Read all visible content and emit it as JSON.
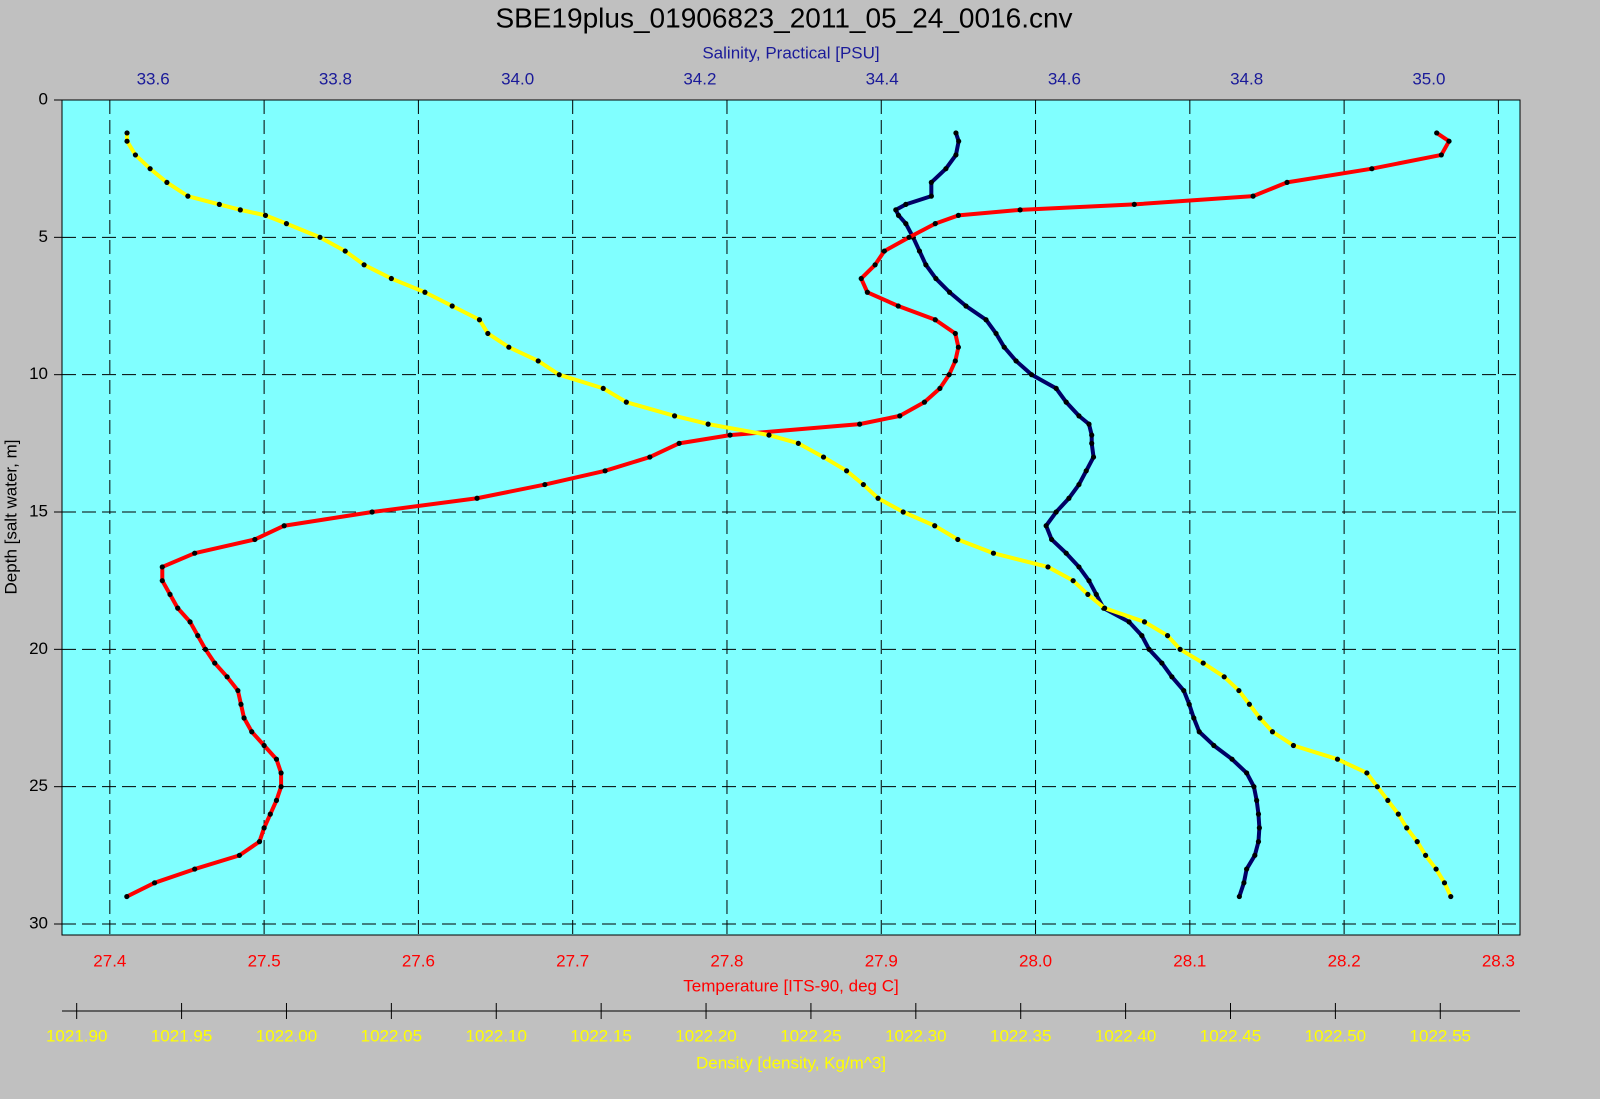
{
  "chart_data": {
    "type": "line",
    "title": "SBE19plus_01906823_2011_05_24_0016.cnv",
    "y_label": "Depth [salt water, m]",
    "ylim": [
      0,
      30.4
    ],
    "y_inverted": true,
    "yticks": [
      0,
      5,
      10,
      15,
      20,
      25,
      30
    ],
    "grid": true,
    "background": "#80ffff",
    "marker_color": "#000000",
    "depths": [
      1.2,
      1.5,
      2,
      2.5,
      3,
      3.5,
      3.8,
      4,
      4.2,
      4.5,
      5,
      5.5,
      6,
      6.5,
      7,
      7.5,
      8,
      8.5,
      9,
      9.5,
      10,
      10.5,
      11,
      11.5,
      11.8,
      12.2,
      12.5,
      13,
      13.5,
      14,
      14.5,
      15,
      15.5,
      16,
      16.5,
      17,
      17.5,
      18,
      18.5,
      19,
      19.5,
      20,
      20.5,
      21,
      21.5,
      22,
      22.5,
      23,
      23.5,
      24,
      24.5,
      25,
      25.5,
      26,
      26.5,
      27,
      27.5,
      28,
      28.5,
      29
    ],
    "x_axes": [
      {
        "label": "Temperature [ITS-90, deg C]",
        "position": "bottom",
        "color": "#ff0000",
        "grid": true,
        "lim": [
          27.369,
          28.314
        ],
        "ticks": [
          27.4,
          27.5,
          27.6,
          27.7,
          27.8,
          27.9,
          {
            "value": 28,
            "label": "28.0"
          },
          28.1,
          28.2,
          28.3
        ]
      },
      {
        "label": "Salinity, Practical [PSU]",
        "position": "top",
        "color": "#1a1a99",
        "grid": false,
        "lim": [
          33.5,
          35.1
        ],
        "ticks": [
          33.6,
          33.8,
          {
            "value": 34,
            "label": "34.0"
          },
          34.2,
          34.4,
          34.6,
          34.8,
          {
            "value": 35,
            "label": "35.0"
          }
        ]
      },
      {
        "label": "Density [density, Kg/m^3]",
        "position": "lower",
        "color": "#ffff00",
        "grid": false,
        "lim": [
          1021.893,
          1022.588
        ],
        "ticks": [
          {
            "value": 1021.9,
            "label": "1021.90"
          },
          1021.95,
          {
            "value": 1022,
            "label": "1022.00"
          },
          1022.05,
          {
            "value": 1022.1,
            "label": "1022.10"
          },
          1022.15,
          {
            "value": 1022.2,
            "label": "1022.20"
          },
          1022.25,
          {
            "value": 1022.3,
            "label": "1022.30"
          },
          1022.35,
          {
            "value": 1022.4,
            "label": "1022.40"
          },
          1022.45,
          {
            "value": 1022.5,
            "label": "1022.50"
          },
          1022.55
        ]
      }
    ],
    "series": [
      {
        "axis": 1,
        "color": "#000066",
        "values": [
          34.481,
          34.484,
          34.481,
          34.47,
          34.454,
          34.454,
          34.426,
          34.415,
          34.418,
          34.426,
          34.434,
          34.441,
          34.448,
          34.459,
          34.474,
          34.492,
          34.514,
          34.525,
          34.534,
          34.547,
          34.564,
          34.591,
          34.602,
          34.616,
          34.627,
          34.63,
          34.63,
          34.632,
          34.624,
          34.616,
          34.605,
          34.591,
          34.58,
          34.586,
          34.602,
          34.616,
          34.627,
          34.635,
          34.643,
          34.671,
          34.685,
          34.693,
          34.707,
          34.718,
          34.731,
          34.737,
          34.742,
          34.748,
          34.764,
          34.784,
          34.8,
          34.808,
          34.811,
          34.813,
          34.814,
          34.813,
          34.809,
          34.8,
          34.797,
          34.792
        ]
      },
      {
        "axis": 0,
        "color": "#ff0000",
        "values": [
          28.26,
          28.268,
          28.263,
          28.218,
          28.163,
          28.141,
          28.064,
          27.99,
          27.95,
          27.935,
          27.918,
          27.902,
          27.896,
          27.887,
          27.891,
          27.911,
          27.935,
          27.948,
          27.95,
          27.948,
          27.944,
          27.938,
          27.928,
          27.912,
          27.886,
          27.802,
          27.769,
          27.75,
          27.721,
          27.682,
          27.638,
          27.57,
          27.513,
          27.494,
          27.455,
          27.434,
          27.434,
          27.439,
          27.444,
          27.452,
          27.457,
          27.462,
          27.468,
          27.476,
          27.483,
          27.485,
          27.487,
          27.492,
          27.5,
          27.508,
          27.511,
          27.511,
          27.508,
          27.504,
          27.5,
          27.497,
          27.484,
          27.455,
          27.429,
          27.411
        ]
      },
      {
        "axis": 2,
        "color": "#ffff00",
        "values": [
          1021.924,
          1021.924,
          1021.928,
          1021.935,
          1021.943,
          1021.953,
          1021.968,
          1021.978,
          1021.99,
          1022.0,
          1022.016,
          1022.028,
          1022.037,
          1022.05,
          1022.066,
          1022.079,
          1022.092,
          1022.096,
          1022.106,
          1022.12,
          1022.13,
          1022.151,
          1022.162,
          1022.185,
          1022.201,
          1022.23,
          1022.244,
          1022.256,
          1022.267,
          1022.275,
          1022.282,
          1022.294,
          1022.309,
          1022.32,
          1022.337,
          1022.363,
          1022.375,
          1022.382,
          1022.39,
          1022.409,
          1022.42,
          1022.426,
          1022.437,
          1022.447,
          1022.454,
          1022.459,
          1022.464,
          1022.47,
          1022.48,
          1022.501,
          1022.515,
          1022.52,
          1022.525,
          1022.53,
          1022.534,
          1022.539,
          1022.543,
          1022.548,
          1022.552,
          1022.555
        ]
      }
    ]
  }
}
